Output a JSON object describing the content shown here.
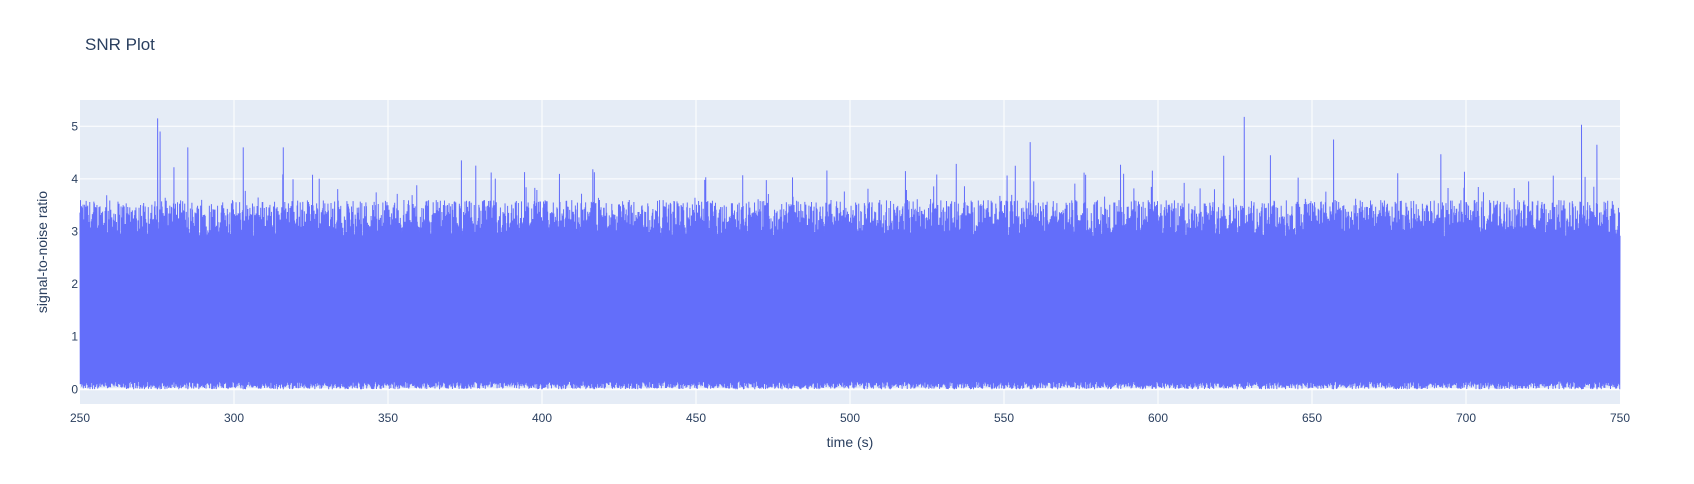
{
  "chart_data": {
    "type": "line",
    "title": "SNR Plot",
    "xlabel": "time (s)",
    "ylabel": "signal-to-noise ratio",
    "xlim": [
      250,
      750
    ],
    "ylim": [
      -0.28,
      5.5
    ],
    "x_ticks": [
      250,
      300,
      350,
      400,
      450,
      500,
      550,
      600,
      650,
      700,
      750
    ],
    "y_ticks": [
      0,
      1,
      2,
      3,
      4,
      5
    ],
    "grid": true,
    "legend": "none",
    "colors": {
      "series": "#636efa",
      "plot_background": "#e5ecf6",
      "grid": "#ffffff",
      "text": "#2a3f5f"
    },
    "series": [
      {
        "x_start": 250,
        "x_end": 750,
        "typical_peak_range": [
          2.9,
          3.6
        ],
        "floor_range": [
          0.0,
          0.15
        ],
        "peaks": [
          {
            "x": 275.2,
            "y": 5.15
          },
          {
            "x": 276.0,
            "y": 4.9
          },
          {
            "x": 285.0,
            "y": 4.6
          },
          {
            "x": 303.0,
            "y": 4.6
          },
          {
            "x": 316.0,
            "y": 4.6
          },
          {
            "x": 558.5,
            "y": 4.7
          },
          {
            "x": 628.0,
            "y": 5.18
          },
          {
            "x": 657.0,
            "y": 4.75
          },
          {
            "x": 737.5,
            "y": 5.03
          },
          {
            "x": 742.5,
            "y": 4.65
          }
        ]
      }
    ]
  }
}
